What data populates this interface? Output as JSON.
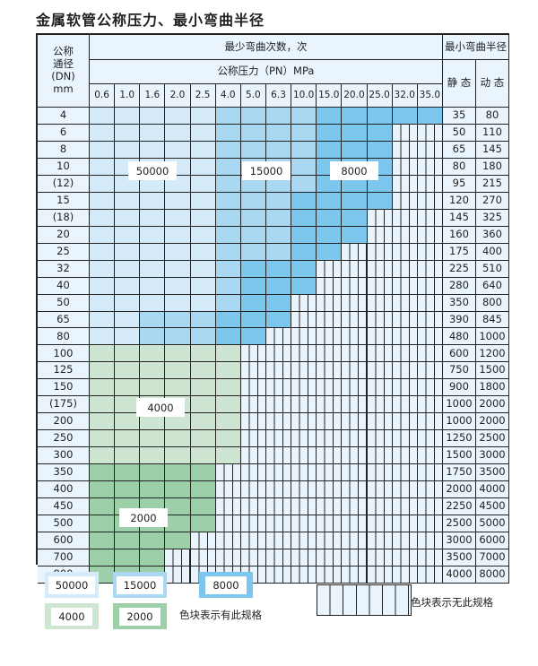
{
  "title": "金属软管公称压力、最小弯曲半径",
  "header": {
    "dn_label": "公称\n通径\n(DN)\nmm",
    "cycles_label": "最少弯曲次数，次",
    "pressure_label": "公称压力（PN）MPa",
    "radius_label": "最小弯曲半径",
    "static_label": "静 态",
    "dynamic_label": "动 态",
    "pressures": [
      "0.6",
      "1.0",
      "1.6",
      "2.0",
      "2.5",
      "4.0",
      "5.0",
      "6.3",
      "10.0",
      "15.0",
      "20.0",
      "25.0",
      "32.0",
      "35.0"
    ]
  },
  "colors": {
    "L": "#d5ebf9",
    "M": "#aad8f3",
    "D": "#7dc6ee",
    "G": "#cde5d1",
    "H": "#9dcfa9",
    "X": "#eaf4fc"
  },
  "rows": [
    {
      "dn": "4",
      "static": "35",
      "dynamic": "80",
      "pattern": "LLLLLMMMMDDDDD"
    },
    {
      "dn": "6",
      "static": "50",
      "dynamic": "110",
      "pattern": "LLLLLMMMMDDDXX"
    },
    {
      "dn": "8",
      "static": "65",
      "dynamic": "145",
      "pattern": "LLLLLMMMMDDDXX"
    },
    {
      "dn": "10",
      "static": "80",
      "dynamic": "180",
      "pattern": "LLLLLMMMMDDDXX"
    },
    {
      "dn": "(12)",
      "static": "95",
      "dynamic": "215",
      "pattern": "LLLLLMMMMDDDXX"
    },
    {
      "dn": "15",
      "static": "120",
      "dynamic": "270",
      "pattern": "LLLLLMMMDDDDXX"
    },
    {
      "dn": "(18)",
      "static": "145",
      "dynamic": "325",
      "pattern": "LLLLLMMMDDDXXX"
    },
    {
      "dn": "20",
      "static": "160",
      "dynamic": "360",
      "pattern": "LLLLLMMMDDDXXX"
    },
    {
      "dn": "25",
      "static": "175",
      "dynamic": "400",
      "pattern": "LLLLLMMMDDXXXX"
    },
    {
      "dn": "32",
      "static": "225",
      "dynamic": "510",
      "pattern": "LLLLLMDDDXXXXX"
    },
    {
      "dn": "40",
      "static": "280",
      "dynamic": "640",
      "pattern": "LLLLLMDDDXXXXX"
    },
    {
      "dn": "50",
      "static": "350",
      "dynamic": "800",
      "pattern": "LLLLLMDDXXXXXX"
    },
    {
      "dn": "65",
      "static": "390",
      "dynamic": "845",
      "pattern": "LLMMMDDDXXXXXX"
    },
    {
      "dn": "80",
      "static": "480",
      "dynamic": "1000",
      "pattern": "LLMMMDDXXXXXXX"
    },
    {
      "dn": "100",
      "static": "600",
      "dynamic": "1200",
      "pattern": "GGGGGGXXXXXXXX"
    },
    {
      "dn": "125",
      "static": "750",
      "dynamic": "1500",
      "pattern": "GGGGGGXXXXXXXX"
    },
    {
      "dn": "150",
      "static": "900",
      "dynamic": "1800",
      "pattern": "GGGGGGXXXXXXXX"
    },
    {
      "dn": "(175)",
      "static": "1000",
      "dynamic": "2000",
      "pattern": "GGGGGGXXXXXXXX"
    },
    {
      "dn": "200",
      "static": "1000",
      "dynamic": "2000",
      "pattern": "GGGGGGXXXXXXXX"
    },
    {
      "dn": "250",
      "static": "1250",
      "dynamic": "2500",
      "pattern": "GGGGGGXXXXXXXX"
    },
    {
      "dn": "300",
      "static": "1500",
      "dynamic": "3000",
      "pattern": "GGGGGGXXXXXXXX"
    },
    {
      "dn": "350",
      "static": "1750",
      "dynamic": "3500",
      "pattern": "HHHHHXXXXXXXXX"
    },
    {
      "dn": "400",
      "static": "2000",
      "dynamic": "4000",
      "pattern": "HHHHHXXXXXXXXX"
    },
    {
      "dn": "450",
      "static": "2250",
      "dynamic": "4500",
      "pattern": "HHHHHXXXXXXXXX"
    },
    {
      "dn": "500",
      "static": "2500",
      "dynamic": "5000",
      "pattern": "HHHHHXXXXXXXXX"
    },
    {
      "dn": "600",
      "static": "3000",
      "dynamic": "6000",
      "pattern": "HHHHXXXXXXXXXX"
    },
    {
      "dn": "700",
      "static": "3500",
      "dynamic": "7000",
      "pattern": "HHHXXXXXXXXXXX"
    },
    {
      "dn": "800",
      "static": "4000",
      "dynamic": "8000",
      "pattern": "HHHXXXXXXXXXXX"
    }
  ],
  "region_labels": {
    "L": "50000",
    "M": "15000",
    "D": "8000",
    "G": "4000",
    "H": "2000"
  },
  "legend": {
    "available_text": "色块表示有此规格",
    "unavailable_text": "色块表示无此规格"
  }
}
